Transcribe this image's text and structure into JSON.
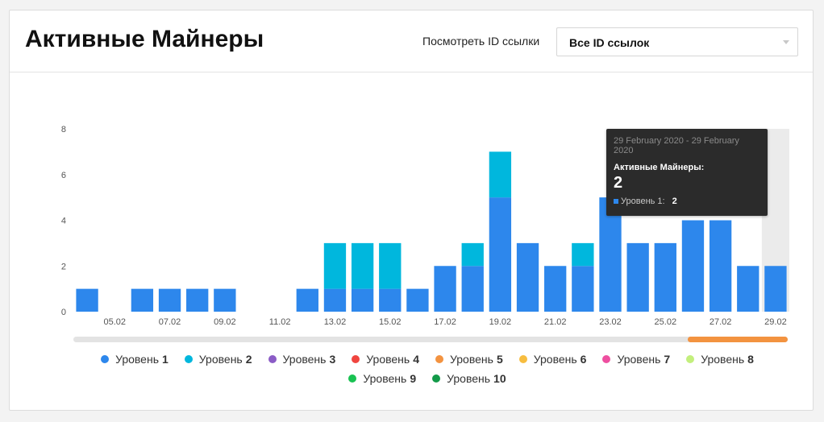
{
  "header": {
    "title": "Активные Майнеры",
    "filter_label": "Посмотреть ID ссылки",
    "select_value": "Все ID ссылок"
  },
  "colors": {
    "level1": "#2d87ec",
    "level2": "#00b7dd",
    "scrollbar_track": "#e3e3e3",
    "scrollbar_thumb": "#f39340",
    "hover_band": "#ebebeb",
    "axis_text": "#555555"
  },
  "chart_data": {
    "type": "bar",
    "stacked": true,
    "categories": [
      "04.02",
      "05.02",
      "06.02",
      "07.02",
      "08.02",
      "09.02",
      "10.02",
      "11.02",
      "12.02",
      "13.02",
      "14.02",
      "15.02",
      "16.02",
      "17.02",
      "18.02",
      "19.02",
      "20.02",
      "21.02",
      "22.02",
      "23.02",
      "24.02",
      "25.02",
      "26.02",
      "27.02",
      "28.02",
      "29.02"
    ],
    "x_tick_labels": [
      "05.02",
      "07.02",
      "09.02",
      "11.02",
      "13.02",
      "15.02",
      "17.02",
      "19.02",
      "21.02",
      "23.02",
      "25.02",
      "27.02",
      "29.02"
    ],
    "series": [
      {
        "name": "Уровень 1",
        "color": "#2d87ec",
        "values": [
          1,
          0,
          1,
          1,
          1,
          1,
          0,
          0,
          1,
          1,
          1,
          1,
          1,
          2,
          2,
          5,
          3,
          2,
          2,
          5,
          3,
          3,
          4,
          4,
          2,
          2
        ]
      },
      {
        "name": "Уровень 2",
        "color": "#00b7dd",
        "values": [
          0,
          0,
          0,
          0,
          0,
          0,
          0,
          0,
          0,
          2,
          2,
          2,
          0,
          0,
          1,
          2,
          0,
          0,
          1,
          0,
          0,
          0,
          0,
          0,
          0,
          0
        ]
      }
    ],
    "ylim": [
      0,
      8
    ],
    "y_ticks": [
      0,
      2,
      4,
      6,
      8
    ],
    "grid": false,
    "legend_placement": "bottom",
    "highlighted_category": "29.02"
  },
  "legend": [
    {
      "label": "Уровень",
      "num": "1",
      "color": "#2d87ec"
    },
    {
      "label": "Уровень",
      "num": "2",
      "color": "#00b7dd"
    },
    {
      "label": "Уровень",
      "num": "3",
      "color": "#8b5cc6"
    },
    {
      "label": "Уровень",
      "num": "4",
      "color": "#f0453f"
    },
    {
      "label": "Уровень",
      "num": "5",
      "color": "#f39340"
    },
    {
      "label": "Уровень",
      "num": "6",
      "color": "#f7bd3f"
    },
    {
      "label": "Уровень",
      "num": "7",
      "color": "#ee4fa0"
    },
    {
      "label": "Уровень",
      "num": "8",
      "color": "#c3ef7d"
    },
    {
      "label": "Уровень",
      "num": "9",
      "color": "#19c252"
    },
    {
      "label": "Уровень",
      "num": "10",
      "color": "#139a49"
    }
  ],
  "scrollbar": {
    "thumb_start": 0.86,
    "thumb_end": 1.0
  },
  "tooltip": {
    "date": "29 February 2020 - 29 February 2020",
    "label": "Активные Майнеры:",
    "value": "2",
    "series_label": "Уровень 1:",
    "series_value": "2"
  }
}
